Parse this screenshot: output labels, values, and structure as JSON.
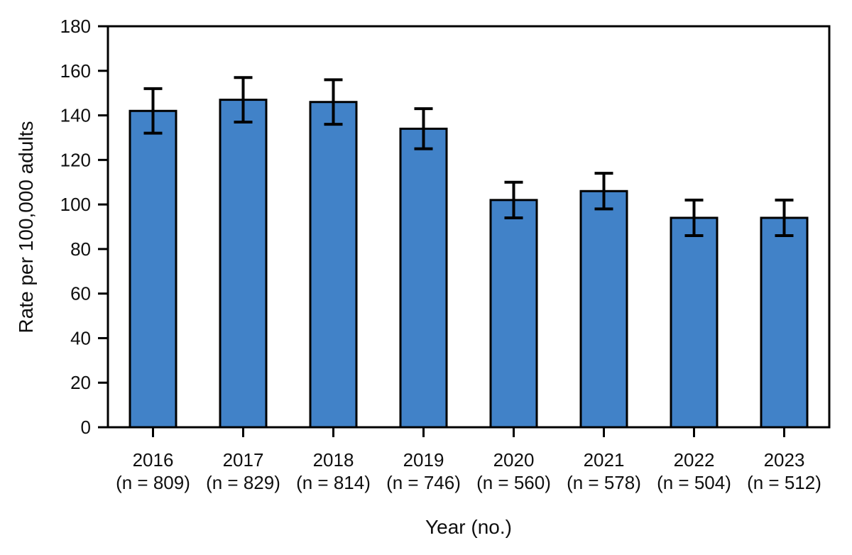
{
  "chart_data": {
    "type": "bar",
    "xlabel": "Year (no.)",
    "ylabel": "Rate per 100,000 adults",
    "ylim": [
      0,
      180
    ],
    "ytick_step": 20,
    "grid": false,
    "frame": "full-box",
    "bar_color": "#4182C8",
    "bar_edge_color": "#000000",
    "error_bar_color": "#000000",
    "categories": [
      "2016",
      "2017",
      "2018",
      "2019",
      "2020",
      "2021",
      "2022",
      "2023"
    ],
    "n_labels": [
      "(n = 809)",
      "(n = 829)",
      "(n = 814)",
      "(n = 746)",
      "(n = 560)",
      "(n = 578)",
      "(n = 504)",
      "(n = 512)"
    ],
    "values": [
      142,
      147,
      146,
      134,
      102,
      106,
      94,
      94
    ],
    "error_low": [
      132,
      137,
      136,
      125,
      94,
      98,
      86,
      86
    ],
    "error_high": [
      152,
      157,
      156,
      143,
      110,
      114,
      102,
      102
    ]
  }
}
